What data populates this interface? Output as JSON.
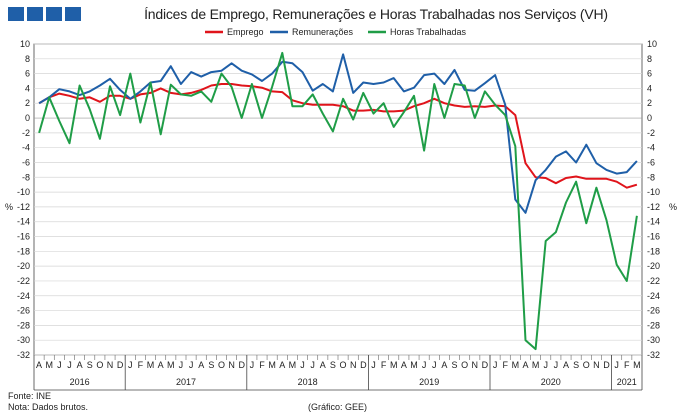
{
  "title": "Índices de Emprego, Remunerações e Horas Trabalhadas nos Serviços (VH)",
  "yaxis_unit": "%",
  "footer": {
    "source": "Fonte: INE",
    "note": "Nota: Dados brutos.",
    "credit": "(Gráfico: GEE)"
  },
  "chart_data": {
    "type": "line",
    "title": "Índices de Emprego, Remunerações e Horas Trabalhadas nos Serviços (VH)",
    "ylabel": "%",
    "ylim": [
      -32,
      10
    ],
    "yticks": [
      10,
      8,
      6,
      4,
      2,
      0,
      -2,
      -4,
      -6,
      -8,
      -10,
      -12,
      -14,
      -16,
      -18,
      -20,
      -22,
      -24,
      -26,
      -28,
      -30,
      -32
    ],
    "grid": true,
    "legend_position": "top-center",
    "x_month_labels": [
      "A",
      "M",
      "J",
      "J",
      "A",
      "S",
      "O",
      "N",
      "D",
      "J",
      "F",
      "M",
      "A",
      "M",
      "J",
      "J",
      "A",
      "S",
      "O",
      "N",
      "D",
      "J",
      "F",
      "M",
      "A",
      "M",
      "J",
      "J",
      "A",
      "S",
      "O",
      "N",
      "D",
      "J",
      "F",
      "M",
      "A",
      "M",
      "J",
      "J",
      "A",
      "S",
      "O",
      "N",
      "D",
      "J",
      "F",
      "M",
      "A",
      "M",
      "J",
      "J",
      "A",
      "S",
      "O",
      "N",
      "D",
      "J",
      "F",
      "M"
    ],
    "x_year_labels": [
      "2016",
      "2017",
      "2018",
      "2019",
      "2020",
      "2021"
    ],
    "year_spans": [
      [
        0,
        9
      ],
      [
        9,
        21
      ],
      [
        21,
        33
      ],
      [
        33,
        45
      ],
      [
        45,
        57
      ],
      [
        57,
        60
      ]
    ],
    "series": [
      {
        "name": "Emprego",
        "color": "#e0141b",
        "values": [
          2.0,
          2.8,
          3.3,
          3.0,
          2.6,
          2.8,
          2.2,
          3.0,
          3.0,
          2.6,
          3.2,
          3.4,
          4.0,
          3.4,
          3.2,
          3.4,
          3.8,
          4.4,
          4.6,
          4.6,
          4.4,
          4.3,
          4.1,
          3.6,
          3.5,
          2.4,
          2.0,
          1.8,
          1.8,
          1.8,
          1.6,
          1.0,
          1.0,
          1.1,
          0.9,
          0.9,
          1.0,
          1.6,
          2.0,
          2.6,
          2.0,
          1.7,
          1.5,
          1.6,
          1.5,
          1.7,
          1.6,
          0.4,
          -6.1,
          -8.0,
          -8.1,
          -8.8,
          -8.1,
          -7.9,
          -8.2,
          -8.2,
          -8.2,
          -8.6,
          -9.4,
          -9.0
        ]
      },
      {
        "name": "Remunerações",
        "color": "#1f5fa8",
        "values": [
          2.0,
          2.8,
          3.9,
          3.6,
          3.1,
          3.6,
          4.4,
          5.3,
          3.8,
          2.6,
          3.6,
          4.8,
          5.0,
          7.0,
          4.6,
          6.2,
          5.6,
          6.2,
          6.4,
          7.4,
          6.4,
          5.9,
          5.0,
          6.0,
          7.6,
          7.4,
          6.2,
          3.7,
          4.6,
          3.6,
          8.6,
          3.4,
          4.8,
          4.6,
          4.8,
          5.4,
          3.6,
          4.1,
          5.8,
          6.0,
          4.6,
          6.5,
          3.8,
          3.7,
          4.7,
          5.8,
          1.8,
          -11.0,
          -12.8,
          -8.4,
          -7.0,
          -5.2,
          -4.5,
          -6.0,
          -3.6,
          -6.1,
          -7.0,
          -7.5,
          -7.3,
          -5.8
        ]
      },
      {
        "name": "Horas Trabalhadas",
        "color": "#1f9d47",
        "values": [
          -2.0,
          2.8,
          -0.4,
          -3.4,
          4.4,
          1.2,
          -2.8,
          4.3,
          0.4,
          6.0,
          -0.6,
          4.8,
          -2.2,
          4.5,
          3.2,
          3.0,
          3.6,
          2.2,
          6.0,
          4.2,
          0.0,
          4.6,
          0.0,
          4.2,
          8.8,
          1.6,
          1.6,
          3.2,
          0.6,
          -1.8,
          2.6,
          -0.2,
          3.4,
          0.6,
          2.0,
          -1.2,
          0.8,
          3.0,
          -4.4,
          4.6,
          0.0,
          4.6,
          4.4,
          0.0,
          3.6,
          1.8,
          0.4,
          -3.8,
          -30.0,
          -31.2,
          -16.6,
          -15.4,
          -11.4,
          -8.6,
          -14.2,
          -9.4,
          -13.8,
          -19.8,
          -22.0,
          -13.2
        ]
      }
    ]
  }
}
